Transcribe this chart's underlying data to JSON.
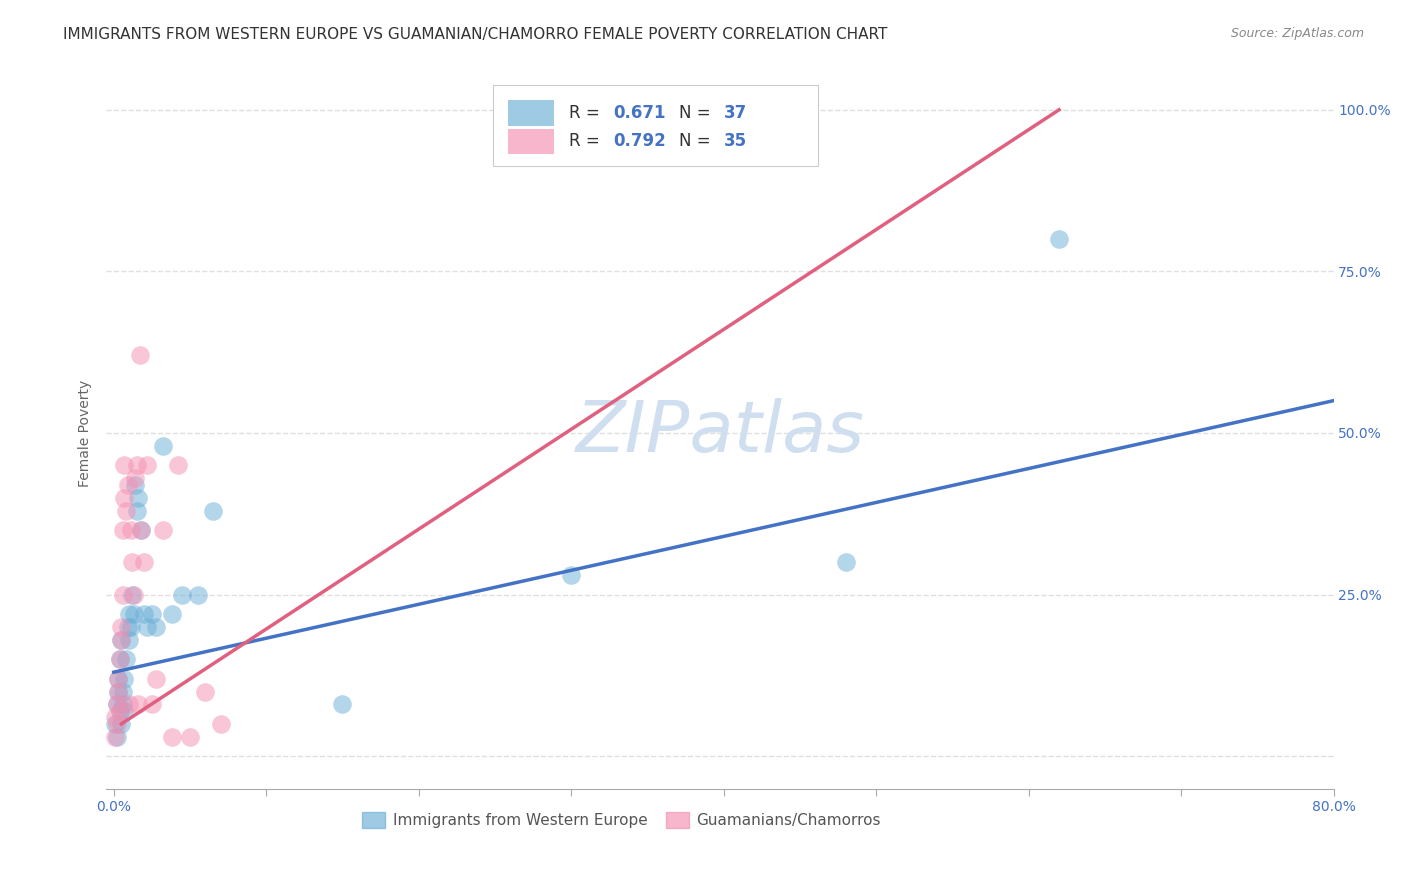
{
  "title": "IMMIGRANTS FROM WESTERN EUROPE VS GUAMANIAN/CHAMORRO FEMALE POVERTY CORRELATION CHART",
  "source": "Source: ZipAtlas.com",
  "ylabel": "Female Poverty",
  "legend_entries": [
    {
      "R": "0.671",
      "N": "37",
      "color": "#aec6e8"
    },
    {
      "R": "0.792",
      "N": "35",
      "color": "#f4b8c8"
    }
  ],
  "legend2_labels": [
    "Immigrants from Western Europe",
    "Guamanians/Chamorros"
  ],
  "legend2_colors": [
    "#aec6e8",
    "#f4b8c8"
  ],
  "watermark": "ZIPatlas",
  "blue_scatter_x": [
    0.001,
    0.002,
    0.002,
    0.003,
    0.003,
    0.004,
    0.004,
    0.005,
    0.005,
    0.006,
    0.006,
    0.007,
    0.007,
    0.008,
    0.009,
    0.01,
    0.01,
    0.011,
    0.012,
    0.013,
    0.014,
    0.015,
    0.016,
    0.018,
    0.02,
    0.022,
    0.025,
    0.028,
    0.032,
    0.038,
    0.045,
    0.055,
    0.065,
    0.15,
    0.3,
    0.48,
    0.62
  ],
  "blue_scatter_y": [
    0.05,
    0.03,
    0.08,
    0.1,
    0.12,
    0.07,
    0.15,
    0.05,
    0.18,
    0.1,
    0.08,
    0.12,
    0.07,
    0.15,
    0.2,
    0.18,
    0.22,
    0.2,
    0.25,
    0.22,
    0.42,
    0.38,
    0.4,
    0.35,
    0.22,
    0.2,
    0.22,
    0.2,
    0.48,
    0.22,
    0.25,
    0.25,
    0.38,
    0.08,
    0.28,
    0.3,
    0.8
  ],
  "pink_scatter_x": [
    0.001,
    0.001,
    0.002,
    0.002,
    0.003,
    0.003,
    0.004,
    0.004,
    0.005,
    0.005,
    0.006,
    0.006,
    0.007,
    0.007,
    0.008,
    0.009,
    0.01,
    0.011,
    0.012,
    0.013,
    0.014,
    0.015,
    0.016,
    0.017,
    0.018,
    0.02,
    0.022,
    0.025,
    0.028,
    0.032,
    0.038,
    0.042,
    0.05,
    0.06,
    0.07
  ],
  "pink_scatter_y": [
    0.03,
    0.06,
    0.05,
    0.08,
    0.1,
    0.12,
    0.07,
    0.15,
    0.18,
    0.2,
    0.25,
    0.35,
    0.4,
    0.45,
    0.38,
    0.42,
    0.08,
    0.35,
    0.3,
    0.25,
    0.43,
    0.45,
    0.08,
    0.62,
    0.35,
    0.3,
    0.45,
    0.08,
    0.12,
    0.35,
    0.03,
    0.45,
    0.03,
    0.1,
    0.05
  ],
  "blue_line_x": [
    0.0,
    0.8
  ],
  "blue_line_y": [
    0.13,
    0.55
  ],
  "pink_line_x": [
    0.005,
    0.62
  ],
  "pink_line_y": [
    0.05,
    1.0
  ],
  "xlim": [
    -0.005,
    0.8
  ],
  "ylim": [
    -0.05,
    1.05
  ],
  "blue_color": "#6aaed6",
  "pink_color": "#f48fb1",
  "blue_line_color": "#4472c4",
  "pink_line_color": "#e06080",
  "grid_color": "#e0e0e0",
  "bg_color": "#ffffff",
  "title_fontsize": 11,
  "axis_label_fontsize": 10,
  "tick_label_fontsize": 10,
  "watermark_color": "#d0dff0",
  "watermark_fontsize": 52
}
